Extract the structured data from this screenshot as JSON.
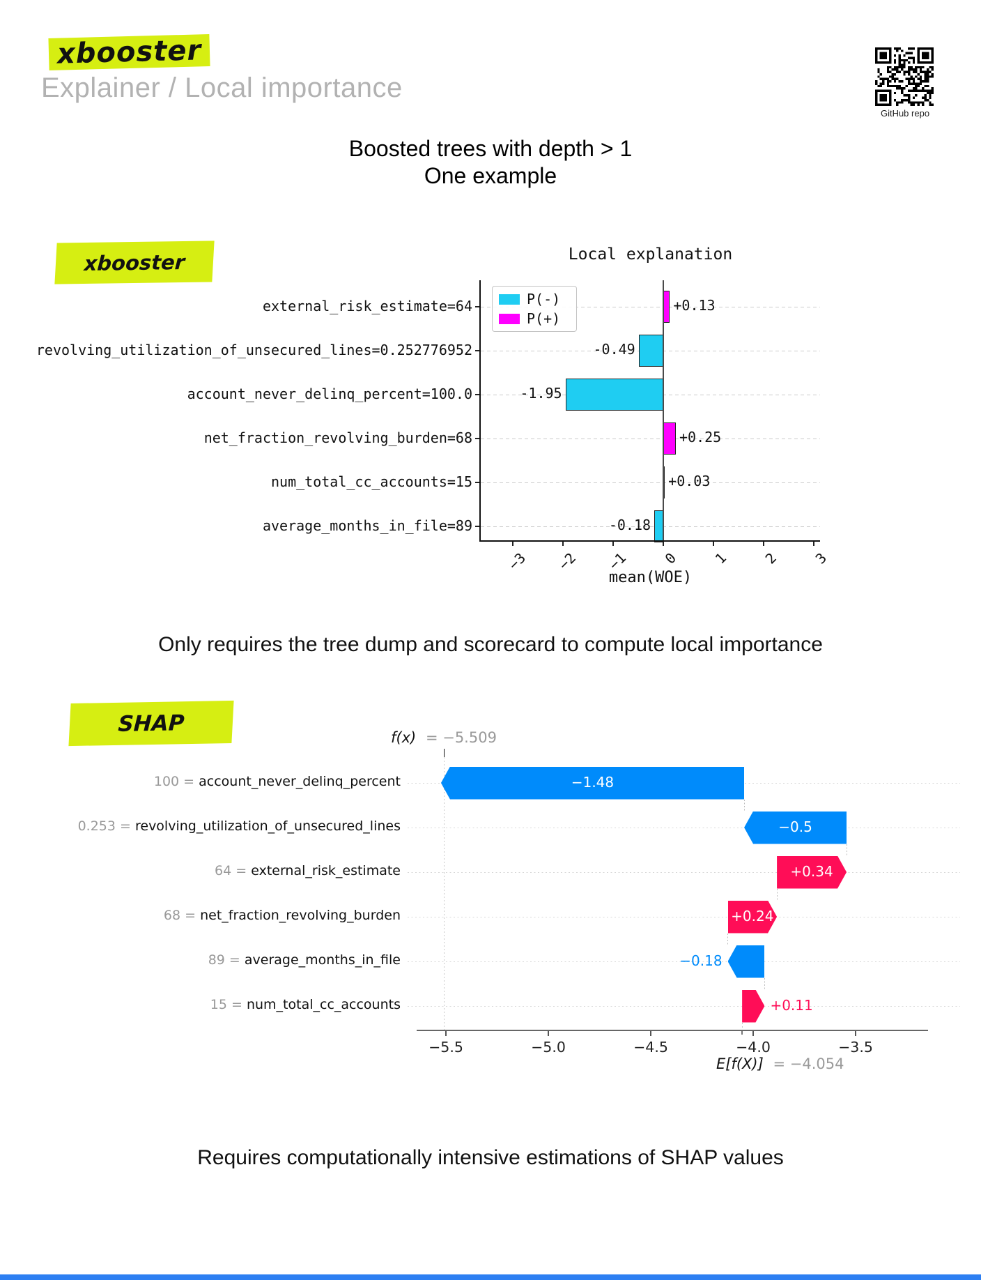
{
  "header": {
    "logo_text": "xbooster",
    "subtitle": "Explainer / Local importance",
    "qr_caption": "GitHub repo"
  },
  "slide": {
    "title_line1": "Boosted trees with depth > 1",
    "title_line2": "One example",
    "mid_caption": "Only requires the tree dump and scorecard to compute local importance",
    "bottom_caption": "Requires computationally intensive estimations of SHAP values"
  },
  "badges": {
    "woe_badge_label": "xbooster",
    "shap_badge_label": "SHAP"
  },
  "colors": {
    "highlight_green": "#d6ee12",
    "woe_negative_cyan": "#1fcdf2",
    "woe_positive_magenta": "#ff00ff",
    "shap_negative_blue": "#008bfb",
    "shap_positive_red": "#ff0d57",
    "bottom_strip_blue": "#2d7ff2",
    "muted_gray": "#999999"
  },
  "chart_data": [
    {
      "type": "bar",
      "orientation": "horizontal",
      "title": "Local explanation",
      "xlabel": "mean(WOE)",
      "xlim": [
        -3.6,
        3.1
      ],
      "grid": true,
      "legend_position": "upper left",
      "legend": [
        {
          "label": "P(-)",
          "color_key": "woe_negative_cyan"
        },
        {
          "label": "P(+)",
          "color_key": "woe_positive_magenta"
        }
      ],
      "categories": [
        "external_risk_estimate=64",
        "revolving_utilization_of_unsecured_lines=0.252776952",
        "account_never_delinq_percent=100.0",
        "net_fraction_revolving_burden=68",
        "num_total_cc_accounts=15",
        "average_months_in_file=89"
      ],
      "values": [
        0.13,
        -0.49,
        -1.95,
        0.25,
        0.03,
        -0.18
      ],
      "value_labels": [
        "+0.13",
        "-0.49",
        "-1.95",
        "+0.25",
        "+0.03",
        "-0.18"
      ],
      "xticks": [
        -3,
        -2,
        -1,
        0,
        1,
        2,
        3
      ],
      "xtick_labels": [
        "−3",
        "−2",
        "−1",
        "0",
        "1",
        "2",
        "3"
      ]
    },
    {
      "type": "waterfall",
      "fx_label": "f(x)",
      "fx_value_text": "= −5.509",
      "fx": -5.509,
      "base_label": "E[f(X)]",
      "base_value_text": "= −4.054",
      "base": -4.054,
      "xtick_values": [
        -5.5,
        -5.0,
        -4.5,
        -4.0,
        -3.5
      ],
      "xtick_labels": [
        "−5.5",
        "−5.0",
        "−4.5",
        "−4.0",
        "−3.5"
      ],
      "rows": [
        {
          "label_prefix": "100 = ",
          "feature": "account_never_delinq_percent",
          "shap": -1.48,
          "shap_label": "−1.48"
        },
        {
          "label_prefix": "0.253 = ",
          "feature": "revolving_utilization_of_unsecured_lines",
          "shap": -0.5,
          "shap_label": "−0.5"
        },
        {
          "label_prefix": "64 = ",
          "feature": "external_risk_estimate",
          "shap": 0.34,
          "shap_label": "+0.34"
        },
        {
          "label_prefix": "68 = ",
          "feature": "net_fraction_revolving_burden",
          "shap": 0.24,
          "shap_label": "+0.24"
        },
        {
          "label_prefix": "89 = ",
          "feature": "average_months_in_file",
          "shap": -0.18,
          "shap_label": "−0.18"
        },
        {
          "label_prefix": "15 = ",
          "feature": "num_total_cc_accounts",
          "shap": 0.11,
          "shap_label": "+0.11"
        }
      ]
    }
  ]
}
